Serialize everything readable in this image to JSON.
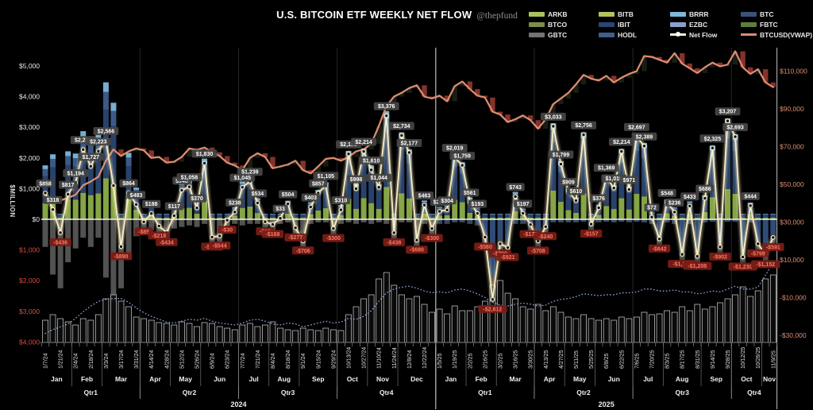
{
  "header": {
    "title": "U.S. BITCOIN ETF WEEKLY NET FLOW",
    "handle": "@thepfund"
  },
  "legend": {
    "items": [
      {
        "label": "ARKB",
        "color": "#a8c35c",
        "kind": "bar"
      },
      {
        "label": "BTCO",
        "color": "#7d8d49",
        "kind": "bar"
      },
      {
        "label": "GBTC",
        "color": "#737373",
        "kind": "bar"
      },
      {
        "label": "BITB",
        "color": "#b5c25e",
        "kind": "bar"
      },
      {
        "label": "IBIT",
        "color": "#2b4670",
        "kind": "bar"
      },
      {
        "label": "HODL",
        "color": "#3f5e8e",
        "kind": "bar"
      },
      {
        "label": "BRRR",
        "color": "#7cb8da",
        "kind": "bar"
      },
      {
        "label": "EZBC",
        "color": "#8c9ecb",
        "kind": "bar"
      },
      {
        "label": "Net Flow",
        "color": "#f7eec9",
        "kind": "netflow"
      },
      {
        "label": "BTC",
        "color": "#3a5278",
        "kind": "bar"
      },
      {
        "label": "FBTC",
        "color": "#5e7e3e",
        "kind": "bar"
      },
      {
        "label": "BTCUSD(VWAP)",
        "color": "#d98d6f",
        "kind": "vwap"
      }
    ]
  },
  "axes": {
    "left_title": "$MILLION",
    "left_ticks": [
      {
        "t": "$5,000",
        "v": 5000
      },
      {
        "t": "$4,000",
        "v": 4000
      },
      {
        "t": "$3,000",
        "v": 3000
      },
      {
        "t": "$2,000",
        "v": 2000
      },
      {
        "t": "$1,000",
        "v": 1000
      },
      {
        "t": "$0",
        "v": 0
      },
      {
        "t": "$1,000",
        "v": -1000,
        "neg": true
      },
      {
        "t": "$2,000",
        "v": -2000,
        "neg": true
      },
      {
        "t": "$3,000",
        "v": -3000,
        "neg": true
      },
      {
        "t": "$4,000",
        "v": -4000,
        "neg": true
      }
    ],
    "right_ticks": [
      {
        "t": "$110,000",
        "v": 110000
      },
      {
        "t": "$90,000",
        "v": 90000
      },
      {
        "t": "$70,000",
        "v": 70000
      },
      {
        "t": "$50,000",
        "v": 50000
      },
      {
        "t": "$30,000",
        "v": 30000
      },
      {
        "t": "$10,000",
        "v": 10000
      },
      {
        "t": "-$10,000",
        "v": -10000
      },
      {
        "t": "-$30,000",
        "v": -30000
      }
    ]
  },
  "chart_data": {
    "type": "composite",
    "title": "U.S. BITCOIN ETF WEEKLY NET FLOW",
    "ylabel_left": "$MILLION",
    "ylim_left": [
      -4000,
      5000
    ],
    "ylim_right": [
      -30000,
      110000
    ],
    "series_info": [
      {
        "name": "Net Flow",
        "type": "line",
        "axis": "left",
        "unit": "$M"
      },
      {
        "name": "BTCUSD(VWAP)",
        "type": "line",
        "axis": "right",
        "unit": "$"
      },
      {
        "name": "ETF stacked flows",
        "type": "bar",
        "axis": "left",
        "unit": "$M"
      }
    ],
    "style": {
      "netflow_color": "#f7eec9",
      "vwap_color": "#d98d6f",
      "candle_down": "#9c3a33",
      "candle_up": "#1a211a",
      "dotted_color": "#8aa4d6",
      "activity_outline": "#cfcfcf",
      "zero_line": "#f0f0f0",
      "neg_axis_color": "#dd4a3c",
      "right_axis_color": "#dd8f6e",
      "chip_pos_bg": "#454545",
      "chip_pos_text": "#ffffff",
      "chip_neg_bg": "#781c16",
      "chip_neg_text": "#ff7a66",
      "pos_stack": [
        [
          "#8cae4a",
          0.3
        ],
        [
          "#2b4670",
          0.5
        ],
        [
          "#3f5e8e",
          0.13
        ],
        [
          "#7cb8da",
          0.07
        ]
      ],
      "neg_stack_2024": [
        [
          "#565656",
          1.0
        ]
      ],
      "neg_stack_2025": [
        [
          "#31507e",
          0.65
        ],
        [
          "#4b4b4b",
          0.35
        ]
      ]
    },
    "months": [
      {
        "n": "Jan",
        "w": 4
      },
      {
        "n": "Feb",
        "w": 4
      },
      {
        "n": "Mar",
        "w": 5
      },
      {
        "n": "Apr",
        "w": 4
      },
      {
        "n": "May",
        "w": 4
      },
      {
        "n": "Jun",
        "w": 5
      },
      {
        "n": "Jul",
        "w": 4
      },
      {
        "n": "Aug",
        "w": 4
      },
      {
        "n": "Sep",
        "w": 5
      },
      {
        "n": "Oct",
        "w": 4
      },
      {
        "n": "Nov",
        "w": 4
      },
      {
        "n": "Dec",
        "w": 5
      },
      {
        "n": "Jan",
        "w": 4
      },
      {
        "n": "Feb",
        "w": 4
      },
      {
        "n": "Mar",
        "w": 5
      },
      {
        "n": "Apr",
        "w": 4
      },
      {
        "n": "May",
        "w": 4
      },
      {
        "n": "Jun",
        "w": 5
      },
      {
        "n": "Jul",
        "w": 4
      },
      {
        "n": "Aug",
        "w": 5
      },
      {
        "n": "Sep",
        "w": 4
      },
      {
        "n": "Oct",
        "w": 4
      },
      {
        "n": "Nov",
        "w": 2
      }
    ],
    "quarters": [
      {
        "n": "Qtr1",
        "w": 13
      },
      {
        "n": "Qtr2",
        "w": 13
      },
      {
        "n": "Qtr3",
        "w": 13
      },
      {
        "n": "Qtr4",
        "w": 13
      },
      {
        "n": "Qtr1",
        "w": 13
      },
      {
        "n": "Qtr2",
        "w": 13
      },
      {
        "n": "Qtr3",
        "w": 13
      },
      {
        "n": "Qtr4",
        "w": 6
      }
    ],
    "years": [
      {
        "n": "2024",
        "w": 52
      },
      {
        "n": "2025",
        "w": 45
      }
    ],
    "label_skip": [
      9
    ],
    "weeks": {
      "dates": [
        "1/7/24",
        "1/14/24",
        "1/21/24",
        "1/28/24",
        "2/4/24",
        "2/11/24",
        "2/18/24",
        "2/25/24",
        "3/3/24",
        "3/10/24",
        "3/17/24",
        "3/24/24",
        "3/31/24",
        "4/7/24",
        "4/14/24",
        "4/21/24",
        "4/28/24",
        "5/5/24",
        "5/12/24",
        "5/19/24",
        "5/26/24",
        "6/2/24",
        "6/9/24",
        "6/16/24",
        "6/23/24",
        "6/30/24",
        "7/7/24",
        "7/14/24",
        "7/21/24",
        "7/28/24",
        "8/4/24",
        "8/11/24",
        "8/18/24",
        "8/25/24",
        "9/1/24",
        "9/8/24",
        "9/15/24",
        "9/22/24",
        "9/29/24",
        "10/6/24",
        "10/13/24",
        "10/20/24",
        "10/27/24",
        "11/3/24",
        "11/10/24",
        "11/17/24",
        "11/24/24",
        "12/1/24",
        "12/8/24",
        "12/15/24",
        "12/22/24",
        "12/29/24",
        "1/5/25",
        "1/12/25",
        "1/19/25",
        "1/26/25",
        "2/2/25",
        "2/9/25",
        "2/16/25",
        "2/23/25",
        "3/2/25",
        "3/9/25",
        "3/16/25",
        "3/23/25",
        "3/30/25",
        "4/6/25",
        "4/13/25",
        "4/20/25",
        "4/27/25",
        "5/4/25",
        "5/11/25",
        "5/18/25",
        "5/25/25",
        "6/1/25",
        "6/8/25",
        "6/15/25",
        "6/22/25",
        "6/29/25",
        "7/6/25",
        "7/13/25",
        "7/20/25",
        "7/27/25",
        "8/3/25",
        "8/10/25",
        "8/17/25",
        "8/24/25",
        "8/31/25",
        "9/7/25",
        "9/14/25",
        "9/21/25",
        "9/28/25",
        "10/5/25",
        "10/12/25",
        "10/19/25",
        "10/26/25",
        "11/2/25",
        "11/9/25"
      ],
      "net": [
        858,
        318,
        -436,
        817,
        1194,
        2274,
        1727,
        2223,
        2566,
        1100,
        -890,
        864,
        483,
        -85,
        188,
        -218,
        -434,
        117,
        948,
        1058,
        370,
        1830,
        -580,
        -544,
        -30,
        238,
        1045,
        1239,
        534,
        -80,
        -168,
        33,
        504,
        -277,
        -706,
        403,
        857,
        1105,
        -300,
        310,
        2132,
        998,
        2214,
        1610,
        1044,
        3376,
        -438,
        2734,
        2177,
        -680,
        463,
        -300,
        259,
        304,
        2019,
        1759,
        561,
        193,
        -580,
        -2612,
        -799,
        -921,
        743,
        197,
        -173,
        -708,
        -240,
        3033,
        1799,
        909,
        610,
        2756,
        -157,
        376,
        1369,
        1019,
        2214,
        971,
        2697,
        2389,
        72,
        -642,
        548,
        236,
        -1143,
        433,
        -1208,
        686,
        2325,
        -902,
        3207,
        2693,
        -1230,
        444,
        -799,
        -1152,
        -591
      ],
      "gray_neg": [
        -900,
        -1800,
        -2250,
        -1400,
        -950,
        -600,
        -900,
        -600,
        -1900,
        -2700,
        -2250,
        -1300,
        -550,
        -450,
        -350,
        -500,
        -600,
        -300,
        -250,
        -200,
        -250,
        -150,
        -400,
        -350,
        -200,
        -150,
        -200,
        -150,
        -150,
        -250,
        -200,
        -150,
        -100,
        -200,
        -300,
        -150,
        -100,
        -100,
        -250,
        -150,
        -100,
        -150,
        -100,
        -150,
        -100,
        -150,
        -350,
        -100,
        -100,
        -400,
        -150,
        -250,
        -150,
        -150,
        -100,
        -100,
        -150,
        -200,
        -450,
        -900,
        -400,
        -450,
        -150,
        -150,
        -200,
        -350,
        -250,
        -100,
        -100,
        -100,
        -100,
        -80,
        -200,
        -100,
        -80,
        -100,
        -80,
        -100,
        -80,
        -100,
        -150,
        -350,
        -100,
        -150,
        -500,
        -150,
        -550,
        -100,
        -80,
        -450,
        -80,
        -80,
        -600,
        -100,
        -400,
        -550,
        -300
      ],
      "btc_vwap": [
        43900,
        42600,
        41500,
        42800,
        44500,
        49500,
        51500,
        54000,
        62500,
        68500,
        65000,
        67500,
        69000,
        68000,
        64000,
        64500,
        61500,
        62000,
        64500,
        69000,
        68200,
        69500,
        67000,
        65000,
        61500,
        60000,
        57500,
        64000,
        66500,
        64500,
        58500,
        59500,
        60500,
        62500,
        57500,
        55800,
        59500,
        63500,
        64000,
        62500,
        64500,
        67500,
        68500,
        71500,
        81000,
        91500,
        96500,
        98500,
        101000,
        102500,
        96500,
        95500,
        97000,
        94000,
        102000,
        104500,
        100500,
        97000,
        96000,
        88500,
        87000,
        83000,
        84500,
        86500,
        84000,
        79500,
        84500,
        92500,
        95500,
        98500,
        103000,
        108000,
        106000,
        105000,
        107500,
        104000,
        106500,
        108500,
        110000,
        118000,
        117500,
        116000,
        114500,
        119500,
        114000,
        111500,
        109000,
        112000,
        114500,
        112500,
        113500,
        120500,
        112000,
        108500,
        111000,
        104000,
        101500
      ],
      "dotted": [
        -29000,
        -27000,
        -25500,
        -24000,
        -21000,
        -17500,
        -14500,
        -12000,
        -11000,
        -10500,
        -10500,
        -12500,
        -15500,
        -18000,
        -20000,
        -21500,
        -23000,
        -23500,
        -22500,
        -21500,
        -22000,
        -21000,
        -22500,
        -23500,
        -24000,
        -24500,
        -23500,
        -22000,
        -21500,
        -22500,
        -24000,
        -24500,
        -23500,
        -24000,
        -25500,
        -24500,
        -23500,
        -22500,
        -23500,
        -23000,
        -21000,
        -21500,
        -20000,
        -17000,
        -12000,
        -7500,
        -5500,
        -4500,
        -4000,
        -5000,
        -6500,
        -7500,
        -7000,
        -7500,
        -6000,
        -5500,
        -6500,
        -8000,
        -10000,
        -12500,
        -14000,
        -14500,
        -13500,
        -13000,
        -13500,
        -14500,
        -14000,
        -12000,
        -11000,
        -10500,
        -9500,
        -8000,
        -8500,
        -9000,
        -8500,
        -8500,
        -7500,
        -7500,
        -7000,
        -5500,
        -5500,
        -6500,
        -6500,
        -6000,
        -7000,
        -7000,
        -8000,
        -7500,
        -6500,
        -7000,
        -5500,
        -4000,
        -5500,
        -5500,
        -4500,
        2000,
        8500
      ],
      "activity": [
        28,
        35,
        30,
        26,
        22,
        30,
        28,
        35,
        55,
        60,
        52,
        45,
        32,
        30,
        28,
        25,
        24,
        22,
        26,
        24,
        20,
        25,
        24,
        20,
        18,
        16,
        22,
        24,
        20,
        22,
        26,
        18,
        16,
        15,
        18,
        16,
        15,
        18,
        16,
        15,
        35,
        45,
        55,
        60,
        80,
        88,
        72,
        60,
        55,
        58,
        48,
        38,
        42,
        36,
        46,
        40,
        40,
        45,
        52,
        72,
        78,
        62,
        55,
        45,
        42,
        48,
        40,
        45,
        38,
        32,
        30,
        35,
        30,
        28,
        30,
        28,
        32,
        30,
        32,
        38,
        35,
        36,
        40,
        38,
        45,
        40,
        48,
        42,
        45,
        50,
        55,
        60,
        70,
        58,
        65,
        80,
        85
      ]
    }
  }
}
